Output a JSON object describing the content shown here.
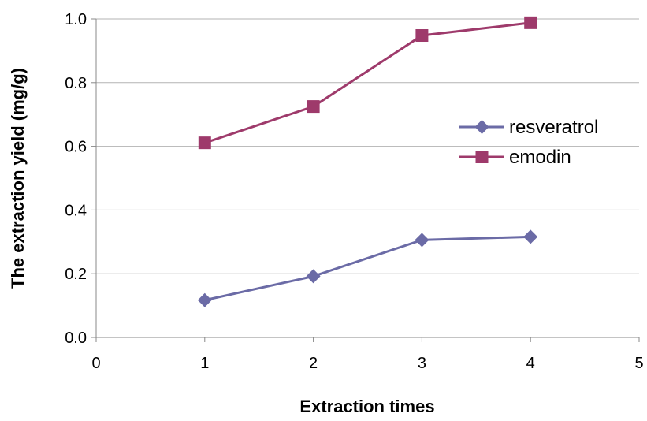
{
  "chart_data": {
    "type": "line",
    "title": "",
    "xlabel": "Extraction times",
    "ylabel": "The extraction yield (mg/g)",
    "xlim": [
      0,
      5
    ],
    "ylim": [
      0,
      1.0
    ],
    "xticks": [
      "0",
      "1",
      "2",
      "3",
      "4",
      "5"
    ],
    "yticks": [
      "0.0",
      "0.2",
      "0.4",
      "0.6",
      "0.8",
      "1.0"
    ],
    "grid": "horizontal",
    "legend_position": "right",
    "series": [
      {
        "name": "resveratrol",
        "color": "#6B6BA6",
        "marker": "diamond",
        "x": [
          1,
          2,
          3,
          4
        ],
        "y": [
          0.117,
          0.192,
          0.306,
          0.316
        ]
      },
      {
        "name": "emodin",
        "color": "#9E3A6B",
        "marker": "square",
        "x": [
          1,
          2,
          3,
          4
        ],
        "y": [
          0.611,
          0.725,
          0.948,
          0.988
        ]
      }
    ]
  }
}
